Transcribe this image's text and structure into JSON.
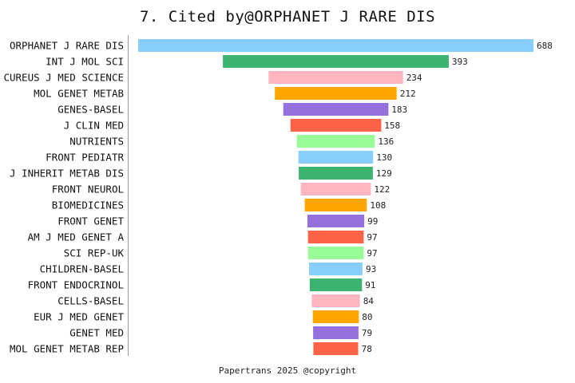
{
  "chart_data": {
    "type": "bar",
    "orientation": "horizontal",
    "style": "centered-funnel",
    "title": "7. Cited by@ORPHANET J RARE DIS",
    "footer": "Papertrans 2025 @copyright",
    "categories": [
      "ORPHANET J RARE DIS",
      "INT J MOL SCI",
      "CUREUS J MED SCIENCE",
      "MOL GENET METAB",
      "GENES-BASEL",
      "J CLIN MED",
      "NUTRIENTS",
      "FRONT PEDIATR",
      "J INHERIT METAB DIS",
      "FRONT NEUROL",
      "BIOMEDICINES",
      "FRONT GENET",
      "AM J MED GENET A",
      "SCI REP-UK",
      "CHILDREN-BASEL",
      "FRONT ENDOCRINOL",
      "CELLS-BASEL",
      "EUR J MED GENET",
      "GENET MED",
      "MOL GENET METAB REP"
    ],
    "values": [
      688,
      393,
      234,
      212,
      183,
      158,
      136,
      130,
      129,
      122,
      108,
      99,
      97,
      97,
      93,
      91,
      84,
      80,
      79,
      78
    ],
    "colors": [
      "#87CEFA",
      "#3CB371",
      "#FFB6C1",
      "#FFA500",
      "#9370DB",
      "#FF6347",
      "#98FB98"
    ],
    "xlim": [
      0,
      688
    ],
    "grid": false,
    "legend": "none"
  }
}
